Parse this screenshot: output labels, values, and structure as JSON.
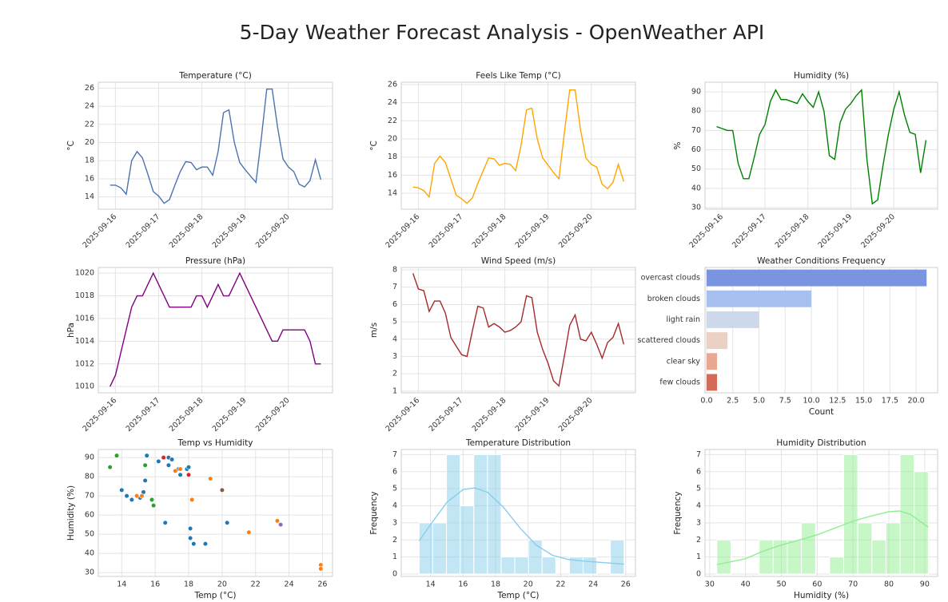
{
  "title": "5-Day Weather Forecast Analysis - OpenWeather API",
  "chart_data": [
    {
      "type": "line",
      "title": "Temperature (°C)",
      "y_label": "°C",
      "color": "#4c72b0",
      "grid": true,
      "categories": [
        null,
        "2025-09-16",
        null,
        null,
        null,
        null,
        null,
        null,
        null,
        "2025-09-17",
        null,
        null,
        null,
        null,
        null,
        null,
        null,
        "2025-09-18",
        null,
        null,
        null,
        null,
        null,
        null,
        null,
        "2025-09-19",
        null,
        null,
        null,
        null,
        null,
        null,
        null,
        "2025-09-20",
        null,
        null,
        null,
        null,
        null,
        null
      ],
      "values": [
        15.3,
        15.3,
        15.0,
        14.3,
        18.0,
        19.0,
        18.3,
        16.5,
        14.6,
        14.1,
        13.3,
        13.7,
        15.3,
        16.8,
        17.9,
        17.8,
        17.0,
        17.3,
        17.3,
        16.4,
        19.0,
        23.3,
        23.6,
        20.0,
        17.8,
        17.0,
        16.3,
        15.6,
        20.5,
        25.9,
        25.9,
        21.7,
        18.2,
        17.3,
        16.8,
        15.4,
        15.1,
        15.8,
        18.1,
        15.9
      ],
      "ylim": [
        12.65,
        26.65
      ],
      "yticks": [
        14,
        16,
        18,
        20,
        22,
        24,
        26
      ]
    },
    {
      "type": "line",
      "title": "Feels Like Temp (°C)",
      "y_label": "°C",
      "color": "#ffa500",
      "grid": true,
      "categories": [
        null,
        "2025-09-16",
        null,
        null,
        null,
        null,
        null,
        null,
        null,
        "2025-09-17",
        null,
        null,
        null,
        null,
        null,
        null,
        null,
        "2025-09-18",
        null,
        null,
        null,
        null,
        null,
        null,
        null,
        "2025-09-19",
        null,
        null,
        null,
        null,
        null,
        null,
        null,
        "2025-09-20",
        null,
        null,
        null,
        null,
        null,
        null
      ],
      "values": [
        14.7,
        14.6,
        14.3,
        13.6,
        17.3,
        18.1,
        17.4,
        15.6,
        13.8,
        13.4,
        12.9,
        13.5,
        15.1,
        16.5,
        17.9,
        17.8,
        17.1,
        17.3,
        17.2,
        16.5,
        19.3,
        23.2,
        23.4,
        20.0,
        17.9,
        17.1,
        16.3,
        15.6,
        20.6,
        25.4,
        25.4,
        21.0,
        17.9,
        17.2,
        16.9,
        15.0,
        14.5,
        15.2,
        17.2,
        15.3
      ],
      "ylim": [
        12.25,
        26.25
      ],
      "yticks": [
        14,
        16,
        18,
        20,
        22,
        24,
        26
      ]
    },
    {
      "type": "line",
      "title": "Humidity (%)",
      "y_label": "%",
      "color": "#008000",
      "grid": true,
      "categories": [
        null,
        "2025-09-16",
        null,
        null,
        null,
        null,
        null,
        null,
        null,
        "2025-09-17",
        null,
        null,
        null,
        null,
        null,
        null,
        null,
        "2025-09-18",
        null,
        null,
        null,
        null,
        null,
        null,
        null,
        "2025-09-19",
        null,
        null,
        null,
        null,
        null,
        null,
        null,
        "2025-09-20",
        null,
        null,
        null,
        null,
        null,
        null
      ],
      "values": [
        72,
        71,
        70,
        70,
        53,
        45,
        45,
        56,
        68,
        73,
        85,
        91,
        86,
        86,
        85,
        84,
        89,
        85,
        82,
        90,
        80,
        57,
        55,
        74,
        81,
        84,
        88,
        91,
        55,
        32,
        34,
        52,
        68,
        81,
        90,
        78,
        69,
        68,
        48,
        65
      ],
      "ylim": [
        29.2,
        95
      ],
      "yticks": [
        30,
        40,
        50,
        60,
        70,
        80,
        90
      ]
    },
    {
      "type": "line",
      "title": "Pressure (hPa)",
      "y_label": "hPa",
      "color": "#800080",
      "grid": true,
      "categories": [
        null,
        "2025-09-16",
        null,
        null,
        null,
        null,
        null,
        null,
        null,
        "2025-09-17",
        null,
        null,
        null,
        null,
        null,
        null,
        null,
        "2025-09-18",
        null,
        null,
        null,
        null,
        null,
        null,
        null,
        "2025-09-19",
        null,
        null,
        null,
        null,
        null,
        null,
        null,
        "2025-09-20",
        null,
        null,
        null,
        null,
        null,
        null
      ],
      "values": [
        1010,
        1011,
        1013,
        1015,
        1017,
        1018,
        1018,
        1019,
        1020,
        1019,
        1018,
        1017,
        1017,
        1017,
        1017,
        1017,
        1018,
        1018,
        1017,
        1018,
        1019,
        1018,
        1018,
        1019,
        1020,
        1019,
        1018,
        1017,
        1016,
        1015,
        1014,
        1014,
        1015,
        1015,
        1015,
        1015,
        1015,
        1014,
        1012,
        1012
      ],
      "ylim": [
        1009.45,
        1020.5
      ],
      "yticks": [
        1010,
        1012,
        1014,
        1016,
        1018,
        1020
      ]
    },
    {
      "type": "line",
      "title": "Wind Speed (m/s)",
      "y_label": "m/s",
      "color": "#a52a2a",
      "grid": true,
      "categories": [
        null,
        "2025-09-16",
        null,
        null,
        null,
        null,
        null,
        null,
        null,
        "2025-09-17",
        null,
        null,
        null,
        null,
        null,
        null,
        null,
        "2025-09-18",
        null,
        null,
        null,
        null,
        null,
        null,
        null,
        "2025-09-19",
        null,
        null,
        null,
        null,
        null,
        null,
        null,
        "2025-09-20",
        null,
        null,
        null,
        null,
        null,
        null
      ],
      "values": [
        7.8,
        6.9,
        6.8,
        5.6,
        6.2,
        6.2,
        5.5,
        4.1,
        3.6,
        3.1,
        3.0,
        4.5,
        5.9,
        5.8,
        4.7,
        4.9,
        4.7,
        4.4,
        4.5,
        4.7,
        5.0,
        6.5,
        6.4,
        4.4,
        3.4,
        2.6,
        1.6,
        1.3,
        3.0,
        4.8,
        5.4,
        4.0,
        3.9,
        4.4,
        3.7,
        2.9,
        3.8,
        4.1,
        4.9,
        3.7
      ],
      "ylim": [
        0.9,
        8.14
      ],
      "yticks": [
        1,
        2,
        3,
        4,
        5,
        6,
        7,
        8
      ]
    },
    {
      "type": "barh",
      "title": "Weather Conditions Frequency",
      "x_label": "Count",
      "grid": true,
      "categories": [
        "overcast clouds",
        "broken clouds",
        "light rain",
        "scattered clouds",
        "clear sky",
        "few clouds"
      ],
      "values": [
        21,
        10,
        5,
        2,
        1,
        1
      ],
      "colors": [
        "#7b94e0",
        "#a8c0f0",
        "#cdd8ea",
        "#ebd0c4",
        "#e8a891",
        "#d46b59"
      ],
      "xlim": [
        -0.15,
        22.05
      ],
      "xticks": [
        {
          "value": 0,
          "label": "0.0"
        },
        {
          "value": 2.5,
          "label": "2.5"
        },
        {
          "value": 5,
          "label": "5.0"
        },
        {
          "value": 7.5,
          "label": "7.5"
        },
        {
          "value": 10,
          "label": "10.0"
        },
        {
          "value": 12.5,
          "label": "12.5"
        },
        {
          "value": 15,
          "label": "15.0"
        },
        {
          "value": 17.5,
          "label": "17.5"
        },
        {
          "value": 20,
          "label": "20.0"
        }
      ]
    },
    {
      "type": "scatter",
      "title": "Temp vs Humidity",
      "x_label": "Temp (°C)",
      "y_label": "Humidity (%)",
      "grid": true,
      "series": [
        {
          "color": "#1f77b4",
          "x": [
            15.5,
            16.2,
            16.8,
            17.0,
            16.8,
            17.4,
            17.5,
            17.9,
            18.0,
            14.0,
            14.3,
            14.6,
            15.1,
            15.3,
            15.4,
            16.6,
            18.1,
            18.1,
            18.3,
            19.0,
            20.3
          ],
          "values": [
            91,
            88,
            90,
            89,
            86,
            84,
            81,
            84,
            85,
            73,
            70,
            68,
            69,
            72,
            78,
            56,
            53,
            48,
            45,
            45,
            56
          ]
        },
        {
          "color": "#ff7f0e",
          "x": [
            14.9,
            15.2,
            17.2,
            17.5,
            18.2,
            19.3,
            21.6,
            23.3,
            25.9,
            25.9
          ],
          "values": [
            70,
            70,
            83,
            84,
            68,
            79,
            51,
            57,
            34,
            32
          ]
        },
        {
          "color": "#2ca02c",
          "x": [
            13.3,
            13.7,
            15.4,
            15.8,
            15.9
          ],
          "values": [
            85,
            91,
            86,
            68,
            65
          ]
        },
        {
          "color": "#d62728",
          "x": [
            16.5,
            18.0
          ],
          "values": [
            90,
            81
          ]
        },
        {
          "color": "#9467bd",
          "x": [
            23.5
          ],
          "values": [
            55
          ]
        },
        {
          "color": "#8c564b",
          "x": [
            20.0
          ],
          "values": [
            73
          ]
        }
      ],
      "xlim": [
        12.6,
        26.6
      ],
      "xticks": [
        14,
        16,
        18,
        20,
        22,
        24,
        26
      ],
      "ylim": [
        28,
        94.2
      ],
      "yticks": [
        30,
        40,
        50,
        60,
        70,
        80,
        90
      ]
    },
    {
      "type": "histogram",
      "title": "Temperature Distribution",
      "x_label": "Temp (°C)",
      "y_label": "Frequency",
      "color": "#87ceeb",
      "grid": true,
      "bins": [
        13.3,
        14.14,
        14.98,
        15.82,
        16.66,
        17.5,
        18.34,
        19.18,
        20.02,
        20.86,
        21.7,
        22.54,
        23.38,
        24.22,
        25.06,
        25.9
      ],
      "values": [
        3,
        3,
        7,
        4,
        7,
        7,
        1,
        1,
        2,
        1,
        0,
        1,
        1,
        0,
        2
      ],
      "kde": {
        "x": [
          13.3,
          14,
          15,
          16,
          16.7,
          17.5,
          18.5,
          19.5,
          20.5,
          21.5,
          22.5,
          23.5,
          24.5,
          25.9
        ],
        "values": [
          1.95,
          2.9,
          4.2,
          4.95,
          5.05,
          4.8,
          3.9,
          2.7,
          1.7,
          1.1,
          0.85,
          0.75,
          0.68,
          0.58
        ]
      },
      "xlim": [
        12.2,
        26.6
      ],
      "xticks": [
        14,
        16,
        18,
        20,
        22,
        24,
        26
      ],
      "ylim": [
        -0.14,
        7.3
      ],
      "yticks": [
        0,
        1,
        2,
        3,
        4,
        5,
        6,
        7
      ]
    },
    {
      "type": "histogram",
      "title": "Humidity Distribution",
      "x_label": "Humidity (%)",
      "y_label": "Frequency",
      "color": "#90ee90",
      "grid": true,
      "bins": [
        32,
        35.93,
        39.87,
        43.8,
        47.73,
        51.67,
        55.6,
        59.53,
        63.47,
        67.4,
        71.33,
        75.27,
        79.2,
        83.13,
        87.07,
        91
      ],
      "values": [
        2,
        0,
        0,
        2,
        2,
        2,
        3,
        0,
        1,
        7,
        3,
        2,
        3,
        7,
        6
      ],
      "kde": {
        "x": [
          32,
          40,
          45,
          50,
          55,
          60,
          65,
          70,
          75,
          80,
          83,
          86,
          91
        ],
        "values": [
          0.55,
          0.9,
          1.35,
          1.7,
          2.0,
          2.3,
          2.7,
          3.1,
          3.4,
          3.65,
          3.7,
          3.5,
          2.75
        ]
      },
      "xlim": [
        28.7,
        93.6
      ],
      "xticks": [
        30,
        40,
        50,
        60,
        70,
        80,
        90
      ],
      "ylim": [
        -0.14,
        7.3
      ],
      "yticks": [
        0,
        1,
        2,
        3,
        4,
        5,
        6,
        7
      ]
    }
  ]
}
